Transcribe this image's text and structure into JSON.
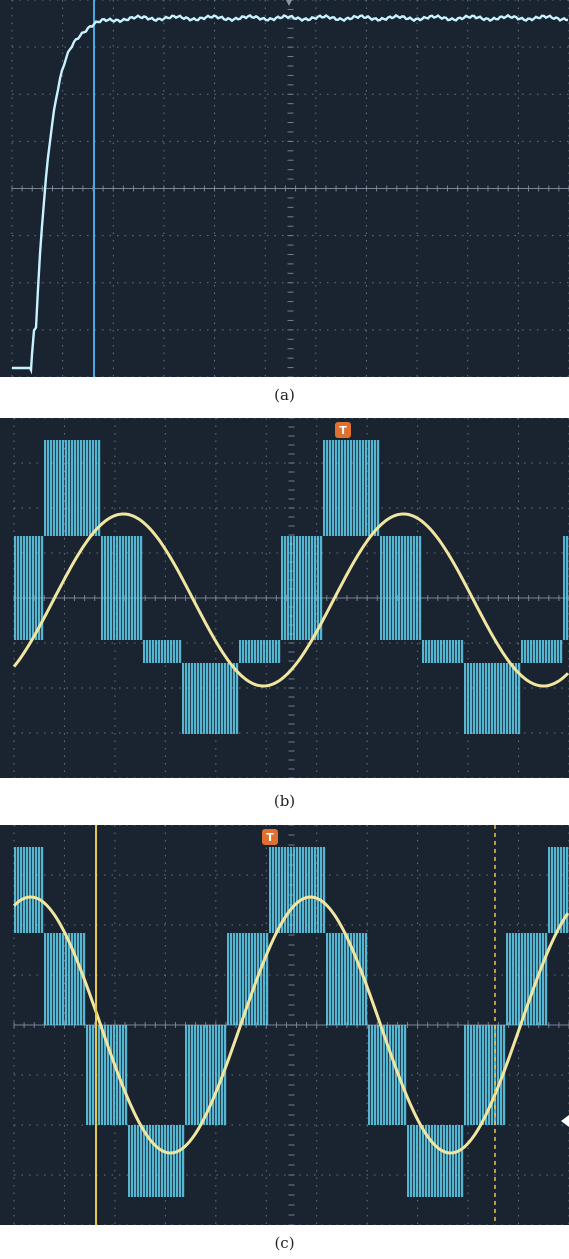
{
  "panels": [
    {
      "id": "a",
      "caption": "(a)",
      "trigger_marker": "",
      "waveform": "step-response"
    },
    {
      "id": "b",
      "caption": "(b)",
      "trigger_marker": "T",
      "waveform": "multilevel-voltage-and-sinusoidal-current"
    },
    {
      "id": "c",
      "caption": "(c)",
      "trigger_marker": "T",
      "waveform": "multilevel-voltage-and-sinusoidal-current"
    }
  ],
  "colors": {
    "screen_background": "#1a2330",
    "grid": "#8a94a6",
    "voltage_trace": "#5fd0ec",
    "current_trace": "#f0e6a0",
    "cursor_blue": "#4aa8e0",
    "cursor_yellow": "#e6c84a",
    "trigger_marker": "#e07030"
  }
}
